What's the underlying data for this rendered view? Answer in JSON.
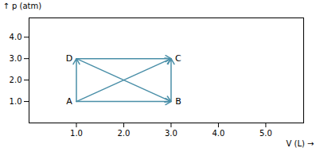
{
  "chart_data": {
    "type": "diagram",
    "xlabel": "V (L)",
    "ylabel": "p (atm)",
    "points": [
      {
        "label": "A",
        "x": 1.0,
        "y": 1.0
      },
      {
        "label": "B",
        "x": 3.0,
        "y": 1.0
      },
      {
        "label": "C",
        "x": 3.0,
        "y": 3.0
      },
      {
        "label": "D",
        "x": 1.0,
        "y": 3.0
      }
    ],
    "arrows": [
      {
        "from": "A",
        "to": "B"
      },
      {
        "from": "D",
        "to": "C"
      },
      {
        "from": "A",
        "to": "D"
      },
      {
        "from": "B",
        "to": "C"
      },
      {
        "from": "A",
        "to": "C"
      },
      {
        "from": "D",
        "to": "B"
      }
    ],
    "color": "#4a8fa8",
    "xlim": [
      0.0,
      5.8
    ],
    "ylim": [
      0.0,
      4.9
    ],
    "xticks": [
      {
        "value": 1.0,
        "label": "1.0"
      },
      {
        "value": 2.0,
        "label": "2.0"
      },
      {
        "value": 3.0,
        "label": "3.0"
      },
      {
        "value": 4.0,
        "label": "4.0"
      },
      {
        "value": 5.0,
        "label": "5.0"
      }
    ],
    "yticks": [
      {
        "value": 1.0,
        "label": "1.0"
      },
      {
        "value": 2.0,
        "label": "2.0"
      },
      {
        "value": 3.0,
        "label": "3.0"
      },
      {
        "value": 4.0,
        "label": "4.0"
      }
    ]
  }
}
